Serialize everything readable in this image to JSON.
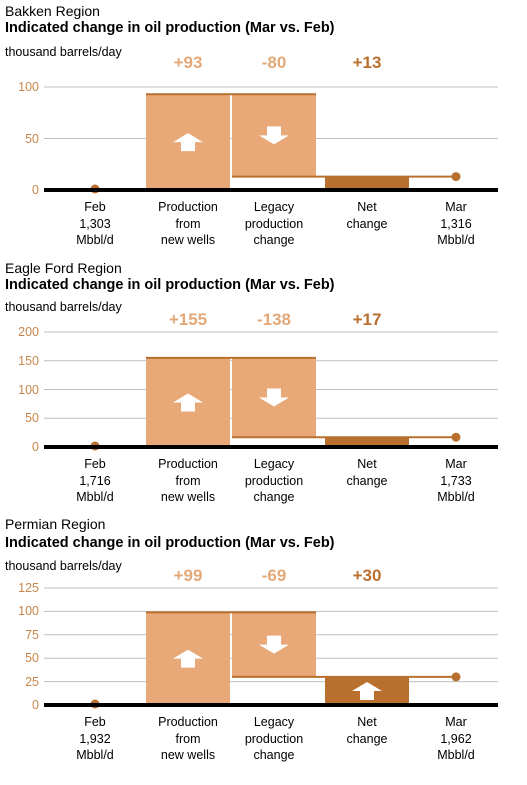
{
  "colors": {
    "unit_text": "#c8864b",
    "label_light": "#e3a878",
    "label_dark": "#b9702f",
    "bar_light": "#e8a878",
    "bar_dark": "#b9702f",
    "line": "#b9702f",
    "axis": "#000000",
    "grid": "#bfbfbf",
    "arrow": "#ffffff"
  },
  "chart_data": [
    {
      "type": "bar",
      "region": "Bakken Region",
      "title": "Indicated change in oil production (Mar vs. Feb)",
      "ylabel": "thousand barrels/day",
      "ylim": [
        0,
        100
      ],
      "yticks": [
        0,
        50,
        100
      ],
      "change_labels": [
        "+93",
        "-80",
        "+13"
      ],
      "production": 93,
      "legacy": -80,
      "net": 13,
      "categories": [
        [
          "Feb",
          "1,303",
          "Mbbl/d"
        ],
        [
          "Production",
          "from",
          "new wells"
        ],
        [
          "Legacy",
          "production",
          "change"
        ],
        [
          "Net",
          "change"
        ],
        [
          "Mar",
          "1,316",
          "Mbbl/d"
        ]
      ]
    },
    {
      "type": "bar",
      "region": "Eagle Ford Region",
      "title": "Indicated change in oil production (Mar vs. Feb)",
      "ylabel": "thousand barrels/day",
      "ylim": [
        0,
        200
      ],
      "yticks": [
        0,
        50,
        100,
        150,
        200
      ],
      "change_labels": [
        "+155",
        "-138",
        "+17"
      ],
      "production": 155,
      "legacy": -138,
      "net": 17,
      "categories": [
        [
          "Feb",
          "1,716",
          "Mbbl/d"
        ],
        [
          "Production",
          "from",
          "new wells"
        ],
        [
          "Legacy",
          "production",
          "change"
        ],
        [
          "Net",
          "change"
        ],
        [
          "Mar",
          "1,733",
          "Mbbl/d"
        ]
      ]
    },
    {
      "type": "bar",
      "region": "Permian Region",
      "title": "Indicated change in oil production (Mar vs. Feb)",
      "ylabel": "thousand barrels/day",
      "ylim": [
        0,
        125
      ],
      "yticks": [
        0,
        25,
        50,
        75,
        100,
        125
      ],
      "change_labels": [
        "+99",
        "-69",
        "+30"
      ],
      "production": 99,
      "legacy": -69,
      "net": 30,
      "categories": [
        [
          "Feb",
          "1,932",
          "Mbbl/d"
        ],
        [
          "Production",
          "from",
          "new wells"
        ],
        [
          "Legacy",
          "production",
          "change"
        ],
        [
          "Net",
          "change"
        ],
        [
          "Mar",
          "1,962",
          "Mbbl/d"
        ]
      ]
    }
  ]
}
